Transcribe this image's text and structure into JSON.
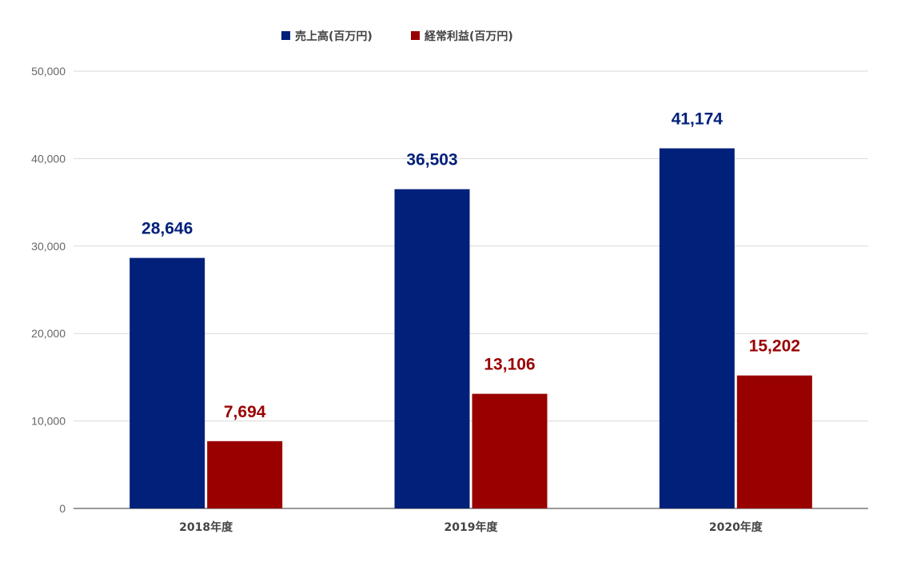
{
  "chart_data": {
    "type": "bar",
    "categories": [
      "2018年度",
      "2019年度",
      "2020年度"
    ],
    "series": [
      {
        "name": "売上高(百万円)",
        "values": [
          28646,
          36503,
          41174
        ],
        "color": "#00207a",
        "label_color": "#00207a"
      },
      {
        "name": "経常利益(百万円)",
        "values": [
          7694,
          13106,
          15202
        ],
        "color": "#990000",
        "label_color": "#990000"
      }
    ],
    "data_labels": [
      [
        "28,646",
        "36,503",
        "41,174"
      ],
      [
        "7,694",
        "13,106",
        "15,202"
      ]
    ],
    "ylim": [
      0,
      50000
    ],
    "yticks": [
      0,
      10000,
      20000,
      30000,
      40000,
      50000
    ],
    "ytick_labels": [
      "0",
      "10,000",
      "20,000",
      "30,000",
      "40,000",
      "50,000"
    ],
    "grid": true,
    "legend_position": "top-center",
    "title": "",
    "xlabel": "",
    "ylabel": ""
  }
}
